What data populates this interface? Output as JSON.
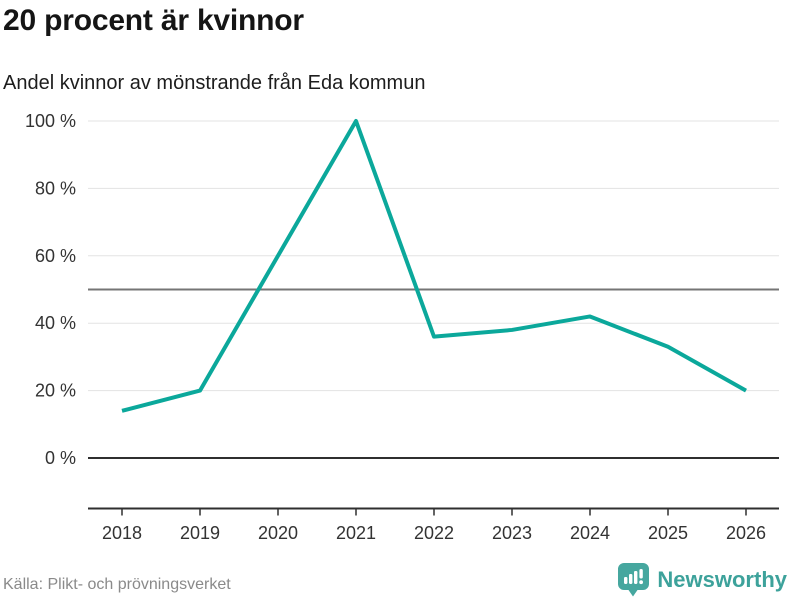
{
  "header": {
    "title": "20 procent är kvinnor",
    "subtitle": "Andel kvinnor av mönstrande från Eda kommun"
  },
  "footer": {
    "source": "Källa: Plikt- och prövningsverket",
    "brand_name": "Newsworthy",
    "brand_icon": "newsworthy-chart-bubble-icon"
  },
  "colors": {
    "line": "#0ba89b",
    "grid": "#e3e3e3",
    "reference_line": "#757575",
    "axis": "#2f2f2f",
    "tick_text": "#333333",
    "brand": "#3da29b",
    "title_text": "#151515",
    "muted_text": "#8a8a8a"
  },
  "chart_data": {
    "type": "line",
    "title": "20 procent är kvinnor",
    "subtitle": "Andel kvinnor av mönstrande från Eda kommun",
    "x": [
      "2018",
      "2019",
      "2020",
      "2021",
      "2022",
      "2023",
      "2024",
      "2025",
      "2026"
    ],
    "series": [
      {
        "name": "Andel kvinnor av mönstrande från Eda kommun",
        "color": "#0ba89b",
        "values": [
          14,
          20,
          60,
          100,
          36,
          38,
          42,
          33,
          20
        ]
      }
    ],
    "ylim": [
      0,
      100
    ],
    "yticks": [
      0,
      20,
      40,
      60,
      80,
      100
    ],
    "ytick_suffix": " %",
    "reference_line": 50,
    "grid": true,
    "legend": "none",
    "source": "Källa: Plikt- och prövningsverket"
  }
}
